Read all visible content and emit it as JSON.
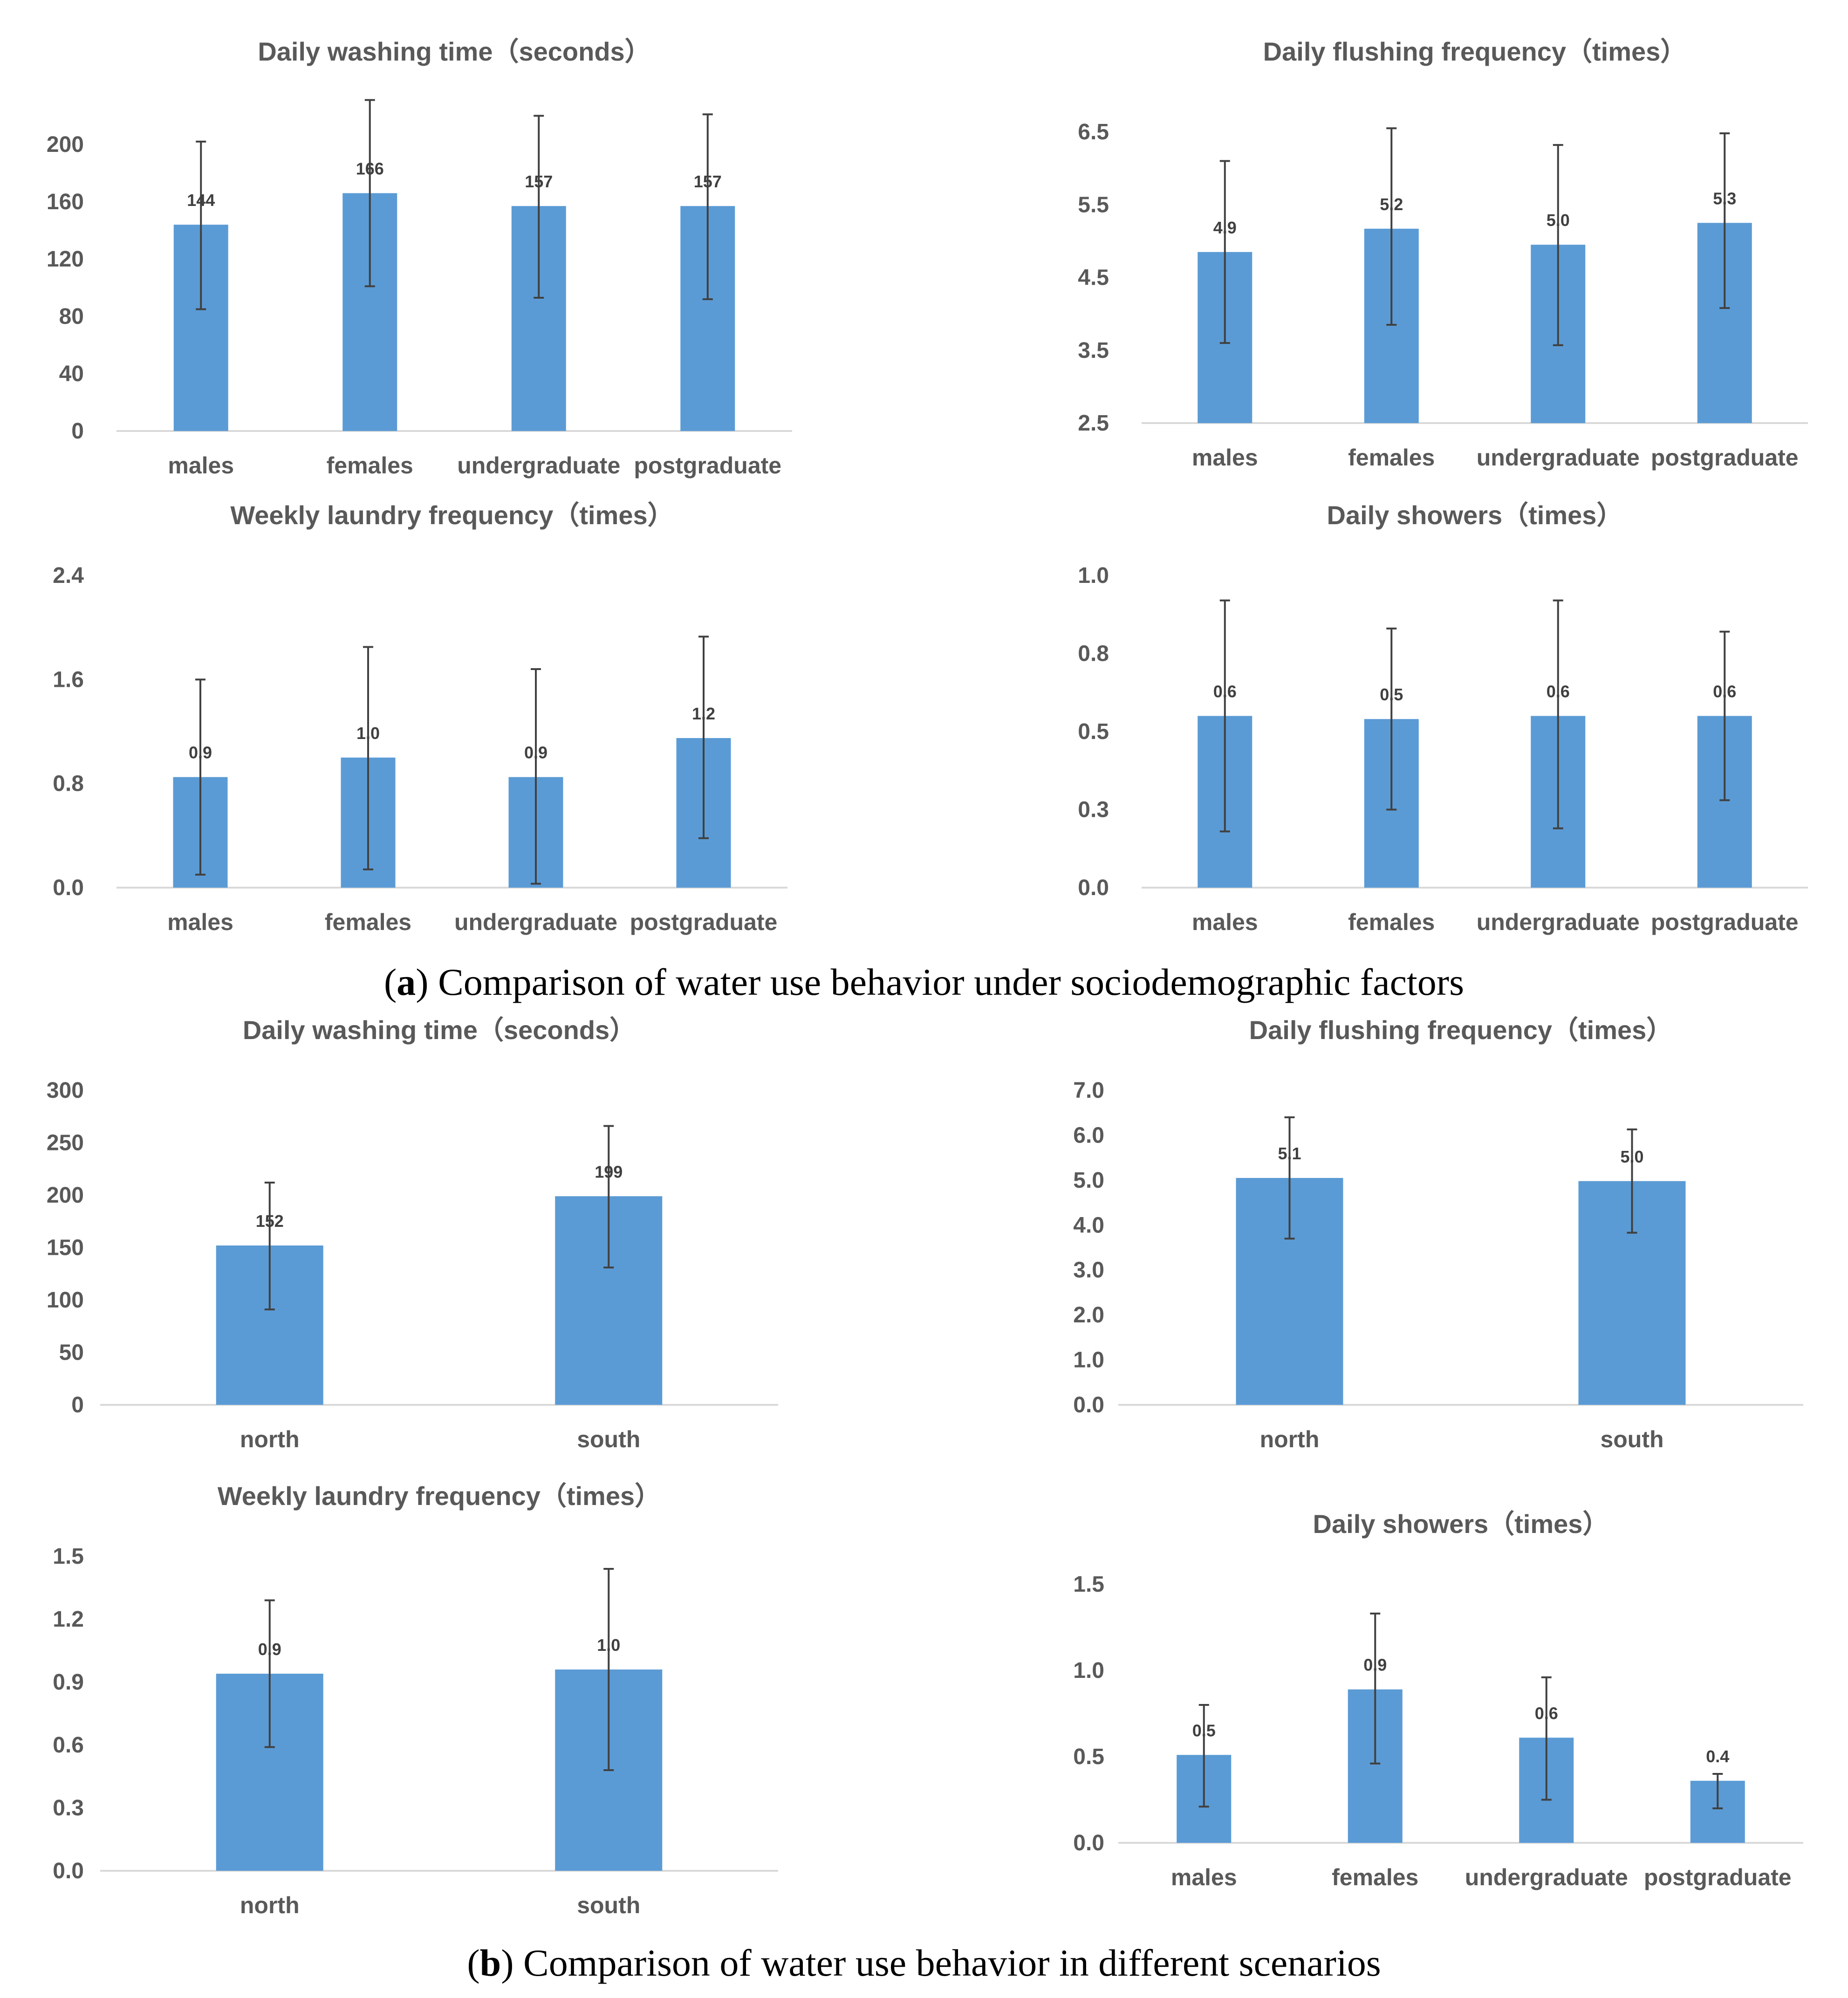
{
  "colors": {
    "bar": "#5b9bd5",
    "axis": "#d9d9d9",
    "error": "#404040",
    "text": "#595959"
  },
  "captions": {
    "a": {
      "letter": "a",
      "text": ") Comparison of water use behavior under sociodemographic factors",
      "open": "("
    },
    "b": {
      "letter": "b",
      "text": ") Comparison of water use behavior in different scenarios",
      "open": "("
    }
  },
  "chart_data": [
    {
      "id": "a1",
      "type": "bar",
      "title": "Daily washing time（seconds）",
      "categories": [
        "males",
        "females",
        "undergraduate",
        "postgraduate"
      ],
      "values": [
        144,
        166,
        157,
        157
      ],
      "labels": [
        "144",
        "166",
        "157",
        "157"
      ],
      "error_low": [
        85,
        101,
        93,
        92
      ],
      "error_high": [
        202,
        231,
        220,
        221
      ],
      "yticks": [
        "0",
        "40",
        "80",
        "120",
        "160",
        "200"
      ],
      "ylim": [
        0,
        200
      ]
    },
    {
      "id": "a2",
      "type": "bar",
      "title": "Daily flushing frequency（times）",
      "categories": [
        "males",
        "females",
        "undergraduate",
        "postgraduate"
      ],
      "values": [
        4.85,
        5.17,
        4.95,
        5.25
      ],
      "labels": [
        "4.9",
        "5.2",
        "5.0",
        "5.3"
      ],
      "error_low": [
        3.6,
        3.85,
        3.57,
        4.08
      ],
      "error_high": [
        6.1,
        6.55,
        6.32,
        6.48
      ],
      "yticks": [
        "2.5",
        "3.5",
        "4.5",
        "5.5",
        "6.5"
      ],
      "ylim": [
        2.5,
        6.5
      ]
    },
    {
      "id": "a3",
      "type": "bar",
      "title": "Weekly laundry frequency（times）",
      "categories": [
        "males",
        "females",
        "undergraduate",
        "postgraduate"
      ],
      "values": [
        0.85,
        1.0,
        0.85,
        1.15
      ],
      "labels": [
        "0.9",
        "1.0",
        "0.9",
        "1.2"
      ],
      "error_low": [
        0.1,
        0.14,
        0.03,
        0.38
      ],
      "error_high": [
        1.6,
        1.85,
        1.68,
        1.93
      ],
      "yticks": [
        "0.0",
        "0.8",
        "1.6",
        "2.4"
      ],
      "ylim": [
        0,
        2.4
      ]
    },
    {
      "id": "a4",
      "type": "bar",
      "title": "Daily  showers（times）",
      "categories": [
        "males",
        "females",
        "undergraduate",
        "postgraduate"
      ],
      "values": [
        0.55,
        0.54,
        0.55,
        0.55
      ],
      "labels": [
        "0.6",
        "0.5",
        "0.6",
        "0.6"
      ],
      "error_low": [
        0.18,
        0.25,
        0.19,
        0.28
      ],
      "error_high": [
        0.92,
        0.83,
        0.92,
        0.82
      ],
      "yticks": [
        "0.0",
        "0.3",
        "0.5",
        "0.8",
        "1.0"
      ],
      "ylim": [
        0,
        1.0
      ]
    },
    {
      "id": "b1",
      "type": "bar",
      "title": "Daily washing time（seconds）",
      "categories": [
        "north",
        "south"
      ],
      "values": [
        152,
        199
      ],
      "labels": [
        "152",
        "199"
      ],
      "error_low": [
        91,
        131
      ],
      "error_high": [
        212,
        266
      ],
      "yticks": [
        "0",
        "50",
        "100",
        "150",
        "200",
        "250",
        "300"
      ],
      "ylim": [
        0,
        300
      ]
    },
    {
      "id": "b2",
      "type": "bar",
      "title": "Daily flushing frequency（times）",
      "categories": [
        "north",
        "south"
      ],
      "values": [
        5.05,
        4.98
      ],
      "labels": [
        "5.1",
        "5.0"
      ],
      "error_low": [
        3.7,
        3.83
      ],
      "error_high": [
        6.4,
        6.13
      ],
      "yticks": [
        "0.0",
        "1.0",
        "2.0",
        "3.0",
        "4.0",
        "5.0",
        "6.0",
        "7.0"
      ],
      "ylim": [
        0,
        7
      ]
    },
    {
      "id": "b3",
      "type": "bar",
      "title": "Weekly laundry frequency（times）",
      "categories": [
        "north",
        "south"
      ],
      "values": [
        0.94,
        0.96
      ],
      "labels": [
        "0.9",
        "1.0"
      ],
      "error_low": [
        0.59,
        0.48
      ],
      "error_high": [
        1.29,
        1.44
      ],
      "yticks": [
        "0.0",
        "0.3",
        "0.6",
        "0.9",
        "1.2",
        "1.5"
      ],
      "ylim": [
        0,
        1.5
      ]
    },
    {
      "id": "b4",
      "type": "bar",
      "title": "Daily  showers（times）",
      "categories": [
        "males",
        "females",
        "undergraduate",
        "postgraduate"
      ],
      "values": [
        0.51,
        0.89,
        0.61,
        0.36
      ],
      "labels": [
        "0.5",
        "0.9",
        "0.6",
        "0.4"
      ],
      "error_low": [
        0.21,
        0.46,
        0.25,
        0.2
      ],
      "error_high": [
        0.8,
        1.33,
        0.96,
        0.4
      ],
      "yticks": [
        "0.0",
        "0.5",
        "1.0",
        "1.5"
      ],
      "ylim": [
        0,
        1.5
      ]
    }
  ]
}
